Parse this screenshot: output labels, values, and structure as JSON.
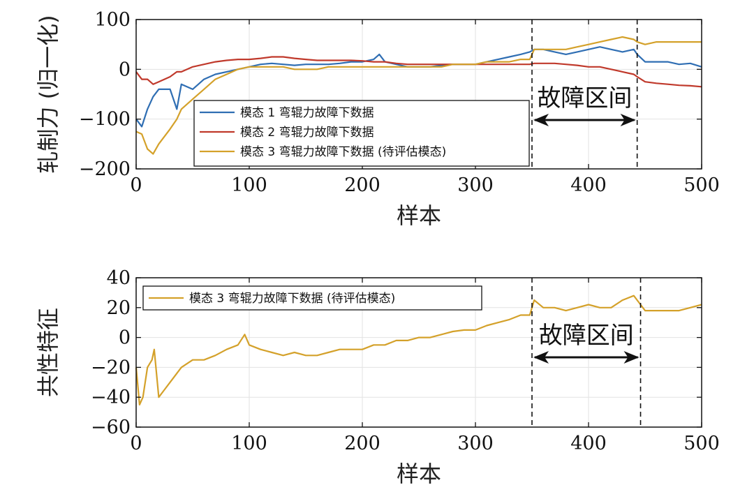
{
  "chart_data": [
    {
      "type": "line",
      "xlabel": "样本",
      "ylabel": "轧制力 (归一化)",
      "xlim": [
        0,
        500
      ],
      "ylim": [
        -200,
        100
      ],
      "xticks": [
        0,
        100,
        200,
        300,
        400,
        500
      ],
      "yticks": [
        -200,
        -100,
        0,
        100
      ],
      "tick_labels_x": [
        "0",
        "100",
        "200",
        "300",
        "400",
        "500"
      ],
      "tick_labels_y": [
        "−200",
        "−100",
        "0",
        "100"
      ],
      "grid": true,
      "legend_position": "center-left",
      "x": [
        0,
        5,
        10,
        15,
        20,
        30,
        36,
        40,
        50,
        60,
        70,
        80,
        90,
        100,
        110,
        120,
        130,
        140,
        150,
        160,
        170,
        180,
        190,
        200,
        210,
        215,
        220,
        230,
        240,
        250,
        260,
        270,
        280,
        290,
        300,
        310,
        320,
        330,
        340,
        348,
        352,
        360,
        370,
        380,
        390,
        400,
        410,
        420,
        430,
        440,
        443,
        450,
        460,
        470,
        480,
        490,
        500
      ],
      "series": [
        {
          "name": "模态 1 弯辊力故障下数据",
          "color": "#2f6eb3",
          "values": [
            -100,
            -115,
            -80,
            -55,
            -40,
            -40,
            -80,
            -30,
            -40,
            -20,
            -10,
            -5,
            0,
            5,
            10,
            12,
            10,
            8,
            10,
            10,
            10,
            12,
            15,
            15,
            20,
            30,
            15,
            10,
            5,
            5,
            5,
            8,
            10,
            10,
            10,
            15,
            20,
            25,
            30,
            35,
            40,
            40,
            35,
            30,
            35,
            40,
            45,
            40,
            35,
            40,
            30,
            15,
            15,
            15,
            10,
            12,
            5
          ]
        },
        {
          "name": "模态 2 弯辊力故障下数据",
          "color": "#c0392b",
          "values": [
            -5,
            -20,
            -20,
            -30,
            -25,
            -15,
            -5,
            -5,
            5,
            10,
            15,
            18,
            20,
            20,
            22,
            25,
            25,
            22,
            20,
            18,
            18,
            18,
            18,
            17,
            15,
            15,
            15,
            12,
            10,
            10,
            10,
            10,
            10,
            10,
            10,
            10,
            10,
            10,
            10,
            10,
            12,
            12,
            12,
            10,
            8,
            5,
            5,
            0,
            -5,
            -10,
            -15,
            -25,
            -28,
            -30,
            -32,
            -33,
            -35
          ]
        },
        {
          "name": "模态 3 弯辊力故障下数据 (待评估模态)",
          "color": "#d4a12a",
          "values": [
            -125,
            -130,
            -160,
            -170,
            -150,
            -120,
            -100,
            -80,
            -60,
            -40,
            -20,
            -10,
            0,
            5,
            5,
            5,
            5,
            0,
            0,
            0,
            5,
            5,
            5,
            5,
            5,
            5,
            5,
            5,
            5,
            5,
            5,
            5,
            10,
            10,
            10,
            15,
            15,
            15,
            20,
            20,
            40,
            40,
            40,
            40,
            45,
            50,
            55,
            60,
            65,
            60,
            55,
            50,
            55,
            55,
            55,
            55,
            55
          ]
        }
      ],
      "annotations": [
        {
          "text": "故障区间",
          "x_range": [
            350,
            443
          ]
        }
      ]
    },
    {
      "type": "line",
      "xlabel": "样本",
      "ylabel": "共性特征",
      "xlim": [
        0,
        500
      ],
      "ylim": [
        -60,
        40
      ],
      "xticks": [
        0,
        100,
        200,
        300,
        400,
        500
      ],
      "yticks": [
        -60,
        -40,
        -20,
        0,
        20,
        40
      ],
      "tick_labels_x": [
        "0",
        "100",
        "200",
        "300",
        "400",
        "500"
      ],
      "tick_labels_y": [
        "−60",
        "−40",
        "−20",
        "0",
        "20",
        "40"
      ],
      "grid": true,
      "legend_position": "top-left",
      "x": [
        0,
        3,
        6,
        10,
        14,
        16,
        20,
        25,
        30,
        40,
        50,
        60,
        70,
        80,
        90,
        96,
        100,
        110,
        120,
        130,
        140,
        150,
        160,
        170,
        180,
        190,
        200,
        210,
        220,
        230,
        240,
        250,
        260,
        270,
        280,
        290,
        300,
        310,
        320,
        330,
        340,
        348,
        352,
        360,
        370,
        380,
        390,
        400,
        410,
        420,
        430,
        440,
        446,
        450,
        460,
        470,
        480,
        490,
        500
      ],
      "series": [
        {
          "name": "模态 3 弯辊力故障下数据 (待评估模态)",
          "color": "#d4a12a",
          "values": [
            -20,
            -45,
            -40,
            -20,
            -15,
            -8,
            -40,
            -35,
            -30,
            -20,
            -15,
            -15,
            -12,
            -8,
            -5,
            2,
            -5,
            -8,
            -10,
            -12,
            -10,
            -12,
            -12,
            -10,
            -8,
            -8,
            -8,
            -5,
            -5,
            -2,
            -2,
            0,
            0,
            2,
            4,
            5,
            5,
            8,
            10,
            12,
            15,
            15,
            25,
            20,
            20,
            18,
            20,
            22,
            20,
            20,
            25,
            28,
            22,
            18,
            18,
            18,
            18,
            20,
            22
          ]
        }
      ],
      "annotations": [
        {
          "text": "故障区间",
          "x_range": [
            350,
            446
          ]
        }
      ]
    }
  ]
}
